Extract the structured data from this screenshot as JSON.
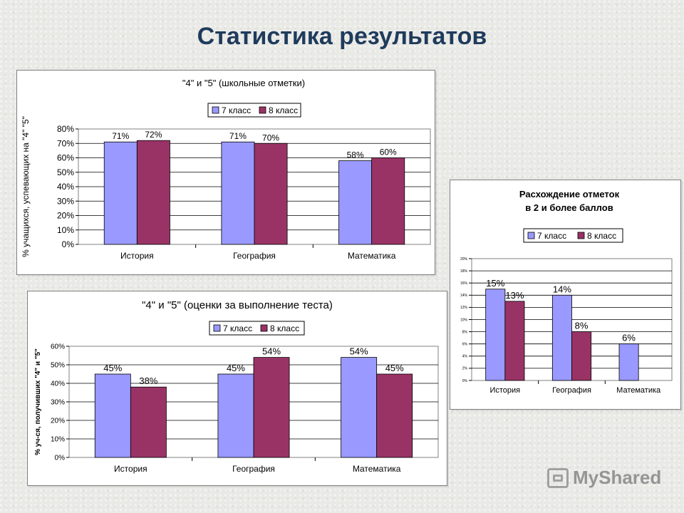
{
  "slide": {
    "title": "Статистика результатов"
  },
  "watermark": {
    "text": "MyShared"
  },
  "colors": {
    "seriesA": "#9999ff",
    "seriesB": "#993366",
    "titleColor": "#1f3b5c"
  },
  "chart_data": [
    {
      "type": "bar",
      "title": "\"4\" и \"5\" (школьные отметки)",
      "categories": [
        "История",
        "География",
        "Математика"
      ],
      "series": [
        {
          "name": "7 класс",
          "values": [
            71,
            71,
            58
          ],
          "labels": [
            "71%",
            "71%",
            "58%"
          ]
        },
        {
          "name": "8 класс",
          "values": [
            72,
            70,
            60
          ],
          "labels": [
            "72%",
            "70%",
            "60%"
          ]
        }
      ],
      "ylabel": "% учащихся, успевающих на \"4\" \"5\"",
      "ylim": [
        0,
        80
      ],
      "yticks": [
        "0%",
        "10%",
        "20%",
        "30%",
        "40%",
        "50%",
        "60%",
        "70%",
        "80%"
      ],
      "legend": "top",
      "grid": true
    },
    {
      "type": "bar",
      "title": "\"4\" и \"5\" (оценки за выполнение теста)",
      "categories": [
        "История",
        "География",
        "Математика"
      ],
      "series": [
        {
          "name": "7 класс",
          "values": [
            45,
            45,
            54
          ],
          "labels": [
            "45%",
            "45%",
            "54%"
          ]
        },
        {
          "name": "8 класс",
          "values": [
            38,
            54,
            45
          ],
          "labels": [
            "38%",
            "54%",
            "45%"
          ]
        }
      ],
      "ylabel": "% уч-ся, получивших \"4\" и \"5\"",
      "ylim": [
        0,
        60
      ],
      "yticks": [
        "0%",
        "10%",
        "20%",
        "30%",
        "40%",
        "50%",
        "60%"
      ],
      "legend": "top",
      "grid": true
    },
    {
      "type": "bar",
      "title": "Расхождение отметок",
      "subtitle": "в 2 и более баллов",
      "categories": [
        "История",
        "География",
        "Математика"
      ],
      "series": [
        {
          "name": "7 класс",
          "values": [
            15,
            14,
            6
          ],
          "labels": [
            "15%",
            "14%",
            "6%"
          ]
        },
        {
          "name": "8 класс",
          "values": [
            13,
            8,
            null
          ],
          "labels": [
            "13%",
            "8%",
            ""
          ]
        }
      ],
      "ylabel": "",
      "ylim": [
        0,
        20
      ],
      "yticks": [
        "0%",
        "2%",
        "4%",
        "6%",
        "8%",
        "10%",
        "12%",
        "14%",
        "16%",
        "18%",
        "20%"
      ],
      "legend": "top",
      "grid": true
    }
  ]
}
